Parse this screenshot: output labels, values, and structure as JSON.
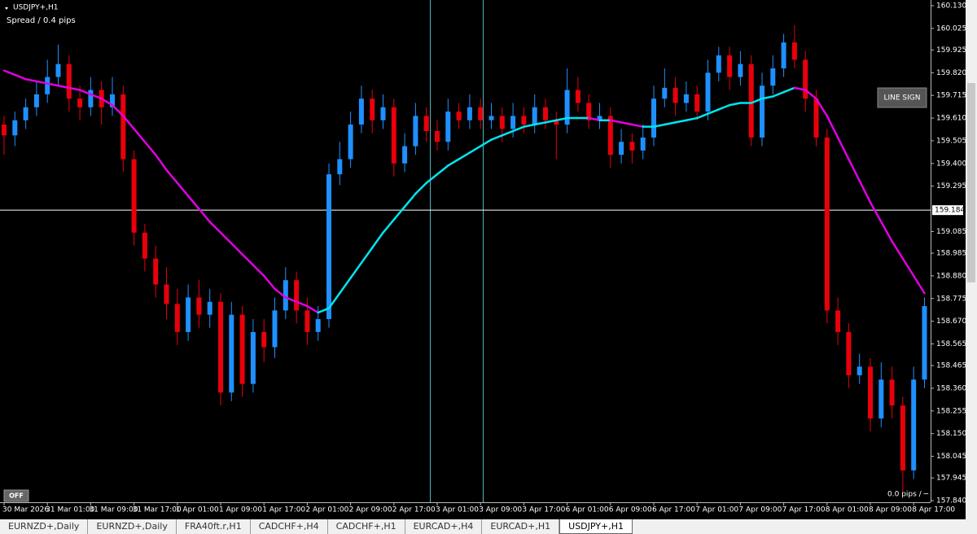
{
  "chart_data": {
    "type": "candlestick",
    "title": "USDJPY+,H1",
    "subtitle": "Spread / 0.4 pips",
    "up_color": "#1e90ff",
    "down_color": "#e8000b",
    "ma_up_color": "#00e5ee",
    "ma_down_color": "#e000e0",
    "ylim": [
      157.84,
      160.13
    ],
    "yticks": [
      {
        "value": 160.13,
        "label": "160.130"
      },
      160.025,
      159.925,
      {
        "value": 159.82,
        "label": "159.820"
      },
      159.715,
      {
        "value": 159.61,
        "label": "159.610"
      },
      159.505,
      {
        "value": 159.4,
        "label": "159.400"
      },
      159.295,
      159.085,
      158.985,
      {
        "value": 158.88,
        "label": "158.880"
      },
      158.775,
      {
        "value": 158.67,
        "label": "158.670"
      },
      158.565,
      158.465,
      {
        "value": 158.36,
        "label": "158.360"
      },
      158.255,
      {
        "value": 158.15,
        "label": "158.150"
      },
      158.045,
      157.945,
      {
        "value": 157.84,
        "label": "157.840"
      }
    ],
    "hline": 159.184,
    "xticks": [
      "30 Mar 2026",
      "31 Mar 01:00",
      "31 Mar 09:00",
      "31 Mar 17:00",
      "1 Apr 01:00",
      "1 Apr 09:00",
      "1 Apr 17:00",
      "2 Apr 01:00",
      "2 Apr 09:00",
      "2 Apr 17:00",
      "3 Apr 01:00",
      "3 Apr 09:00",
      "3 Apr 17:00",
      "6 Apr 01:00",
      "6 Apr 09:00",
      "6 Apr 17:00",
      "7 Apr 01:00",
      "7 Apr 09:00",
      "7 Apr 17:00",
      "8 Apr 01:00",
      "8 Apr 09:00",
      "8 Apr 17:00"
    ],
    "candles": [
      [
        159.58,
        159.62,
        159.44,
        159.53
      ],
      [
        159.53,
        159.64,
        159.48,
        159.6
      ],
      [
        159.6,
        159.7,
        159.56,
        159.66
      ],
      [
        159.66,
        159.78,
        159.62,
        159.72
      ],
      [
        159.72,
        159.88,
        159.68,
        159.8
      ],
      [
        159.8,
        159.95,
        159.76,
        159.86
      ],
      [
        159.86,
        159.9,
        159.64,
        159.7
      ],
      [
        159.7,
        159.76,
        159.6,
        159.66
      ],
      [
        159.66,
        159.8,
        159.62,
        159.74
      ],
      [
        159.74,
        159.78,
        159.58,
        159.66
      ],
      [
        159.66,
        159.8,
        159.62,
        159.72
      ],
      [
        159.72,
        159.76,
        159.36,
        159.42
      ],
      [
        159.42,
        159.46,
        159.02,
        159.08
      ],
      [
        159.08,
        159.12,
        158.9,
        158.96
      ],
      [
        158.96,
        159.02,
        158.78,
        158.84
      ],
      [
        158.84,
        158.92,
        158.68,
        158.75
      ],
      [
        158.75,
        158.82,
        158.56,
        158.62
      ],
      [
        158.62,
        158.84,
        158.58,
        158.78
      ],
      [
        158.78,
        158.86,
        158.64,
        158.7
      ],
      [
        158.7,
        158.82,
        158.64,
        158.76
      ],
      [
        158.76,
        158.8,
        158.28,
        158.34
      ],
      [
        158.34,
        158.76,
        158.3,
        158.7
      ],
      [
        158.7,
        158.74,
        158.32,
        158.38
      ],
      [
        158.38,
        158.68,
        158.34,
        158.62
      ],
      [
        158.62,
        158.68,
        158.48,
        158.55
      ],
      [
        158.55,
        158.78,
        158.5,
        158.72
      ],
      [
        158.72,
        158.92,
        158.68,
        158.86
      ],
      [
        158.86,
        158.9,
        158.66,
        158.72
      ],
      [
        158.72,
        158.78,
        158.56,
        158.62
      ],
      [
        158.62,
        158.74,
        158.58,
        158.68
      ],
      [
        158.68,
        159.4,
        158.64,
        159.35
      ],
      [
        159.35,
        159.5,
        159.3,
        159.42
      ],
      [
        159.42,
        159.64,
        159.38,
        159.58
      ],
      [
        159.58,
        159.76,
        159.54,
        159.7
      ],
      [
        159.7,
        159.74,
        159.54,
        159.6
      ],
      [
        159.6,
        159.72,
        159.56,
        159.66
      ],
      [
        159.66,
        159.7,
        159.34,
        159.4
      ],
      [
        159.4,
        159.54,
        159.36,
        159.48
      ],
      [
        159.48,
        159.68,
        159.44,
        159.62
      ],
      [
        159.62,
        159.66,
        159.5,
        159.55
      ],
      [
        159.55,
        159.6,
        159.46,
        159.5
      ],
      [
        159.5,
        159.7,
        159.46,
        159.64
      ],
      [
        159.64,
        159.68,
        159.56,
        159.6
      ],
      [
        159.6,
        159.72,
        159.56,
        159.66
      ],
      [
        159.66,
        159.7,
        159.56,
        159.6
      ],
      [
        159.6,
        159.68,
        159.56,
        159.62
      ],
      [
        159.62,
        159.66,
        159.5,
        159.56
      ],
      [
        159.56,
        159.68,
        159.52,
        159.62
      ],
      [
        159.62,
        159.66,
        159.54,
        159.58
      ],
      [
        159.58,
        159.72,
        159.54,
        159.66
      ],
      [
        159.66,
        159.7,
        159.56,
        159.6
      ],
      [
        159.6,
        159.64,
        159.42,
        159.58
      ],
      [
        159.58,
        159.84,
        159.54,
        159.74
      ],
      [
        159.74,
        159.8,
        159.64,
        159.68
      ],
      [
        159.68,
        159.72,
        159.56,
        159.6
      ],
      [
        159.6,
        159.68,
        159.56,
        159.62
      ],
      [
        159.62,
        159.66,
        159.38,
        159.44
      ],
      [
        159.44,
        159.56,
        159.4,
        159.5
      ],
      [
        159.5,
        159.54,
        159.4,
        159.46
      ],
      [
        159.46,
        159.58,
        159.42,
        159.52
      ],
      [
        159.52,
        159.76,
        159.48,
        159.7
      ],
      [
        159.7,
        159.84,
        159.66,
        159.75
      ],
      [
        159.75,
        159.8,
        159.62,
        159.68
      ],
      [
        159.68,
        159.78,
        159.64,
        159.72
      ],
      [
        159.72,
        159.76,
        159.6,
        159.64
      ],
      [
        159.64,
        159.88,
        159.6,
        159.82
      ],
      [
        159.82,
        159.94,
        159.78,
        159.9
      ],
      [
        159.9,
        159.94,
        159.74,
        159.8
      ],
      [
        159.8,
        159.92,
        159.76,
        159.86
      ],
      [
        159.86,
        159.9,
        159.48,
        159.52
      ],
      [
        159.52,
        159.82,
        159.48,
        159.76
      ],
      [
        159.76,
        159.9,
        159.72,
        159.84
      ],
      [
        159.84,
        160.0,
        159.8,
        159.96
      ],
      [
        159.96,
        160.04,
        159.84,
        159.88
      ],
      [
        159.88,
        159.92,
        159.64,
        159.7
      ],
      [
        159.7,
        159.74,
        159.48,
        159.52
      ],
      [
        159.52,
        159.56,
        158.66,
        158.72
      ],
      [
        158.72,
        158.78,
        158.56,
        158.62
      ],
      [
        158.62,
        158.66,
        158.36,
        158.42
      ],
      [
        158.42,
        158.52,
        158.38,
        158.46
      ],
      [
        158.46,
        158.5,
        158.16,
        158.22
      ],
      [
        158.22,
        158.48,
        158.18,
        158.4
      ],
      [
        158.4,
        158.46,
        158.22,
        158.28
      ],
      [
        158.28,
        158.32,
        157.88,
        157.98
      ],
      [
        157.98,
        158.46,
        157.94,
        158.4
      ],
      [
        158.4,
        158.78,
        158.36,
        158.74
      ]
    ],
    "ma": [
      159.83,
      159.81,
      159.79,
      159.78,
      159.77,
      159.76,
      159.75,
      159.74,
      159.72,
      159.7,
      159.67,
      159.62,
      159.56,
      159.5,
      159.44,
      159.37,
      159.31,
      159.25,
      159.19,
      159.13,
      159.08,
      159.03,
      158.98,
      158.93,
      158.88,
      158.82,
      158.78,
      158.76,
      158.74,
      158.71,
      158.73,
      158.8,
      158.87,
      158.94,
      159.01,
      159.08,
      159.14,
      159.2,
      159.26,
      159.31,
      159.35,
      159.39,
      159.42,
      159.45,
      159.48,
      159.51,
      159.53,
      159.55,
      159.57,
      159.58,
      159.59,
      159.6,
      159.61,
      159.61,
      159.61,
      159.6,
      159.6,
      159.59,
      159.58,
      159.57,
      159.57,
      159.58,
      159.59,
      159.6,
      159.61,
      159.63,
      159.65,
      159.67,
      159.68,
      159.68,
      159.7,
      159.71,
      159.73,
      159.75,
      159.74,
      159.7,
      159.62,
      159.52,
      159.42,
      159.32,
      159.22,
      159.13,
      159.04,
      158.96,
      158.88,
      158.8
    ]
  },
  "buttons": {
    "line_sign": "LINE SIGN",
    "off": "OFF"
  },
  "status": "0.0 pips / ─",
  "tabs": [
    "EURNZD+,Daily",
    "EURNZD+,Daily",
    "FRA40ft.r,H1",
    "CADCHF+,H4",
    "CADCHF+,H1",
    "EURCAD+,H4",
    "EURCAD+,H1",
    "USDJPY+,H1"
  ]
}
